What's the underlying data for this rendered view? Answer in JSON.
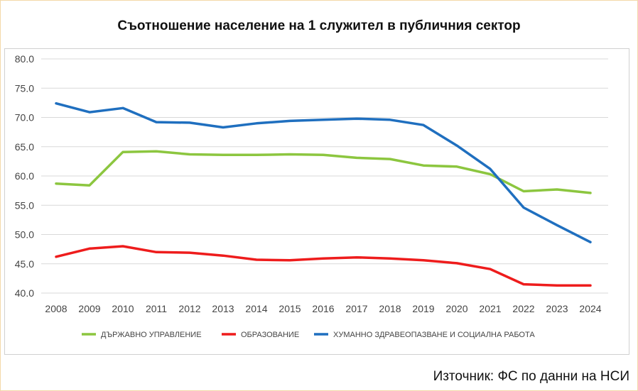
{
  "title": "Съотношение население на 1 служител в публичния сектор",
  "source": "Източник: ФС по данни на НСИ",
  "chart_data": {
    "type": "line",
    "x": [
      "2008",
      "2009",
      "2010",
      "2011",
      "2012",
      "2013",
      "2014",
      "2015",
      "2016",
      "2017",
      "2018",
      "2019",
      "2020",
      "2021",
      "2022",
      "2023",
      "2024"
    ],
    "ylim": [
      40,
      80
    ],
    "yticks": [
      "40.0",
      "45.0",
      "50.0",
      "55.0",
      "60.0",
      "65.0",
      "70.0",
      "75.0",
      "80.0"
    ],
    "grid": true,
    "legend": "bottom",
    "series": [
      {
        "name": "ДЪРЖАВНО УПРАВЛЕНИЕ",
        "color": "#8cc63f",
        "values": [
          58.7,
          58.4,
          64.1,
          64.2,
          63.7,
          63.6,
          63.6,
          63.7,
          63.6,
          63.1,
          62.9,
          61.8,
          61.6,
          60.3,
          57.4,
          57.7,
          57.1
        ]
      },
      {
        "name": "ОБРАЗОВАНИЕ",
        "color": "#ee1c1c",
        "values": [
          46.2,
          47.6,
          48.0,
          47.0,
          46.9,
          46.4,
          45.7,
          45.6,
          45.9,
          46.1,
          45.9,
          45.6,
          45.1,
          44.1,
          41.5,
          41.3,
          41.3
        ]
      },
      {
        "name": "ХУМАННО ЗДРАВЕОПАЗВАНЕ И СОЦИАЛНА РАБОТА",
        "color": "#1f6fbf",
        "values": [
          72.4,
          70.9,
          71.6,
          69.2,
          69.1,
          68.3,
          69.0,
          69.4,
          69.6,
          69.8,
          69.6,
          68.7,
          65.2,
          61.2,
          54.6,
          51.6,
          48.7
        ]
      }
    ]
  }
}
